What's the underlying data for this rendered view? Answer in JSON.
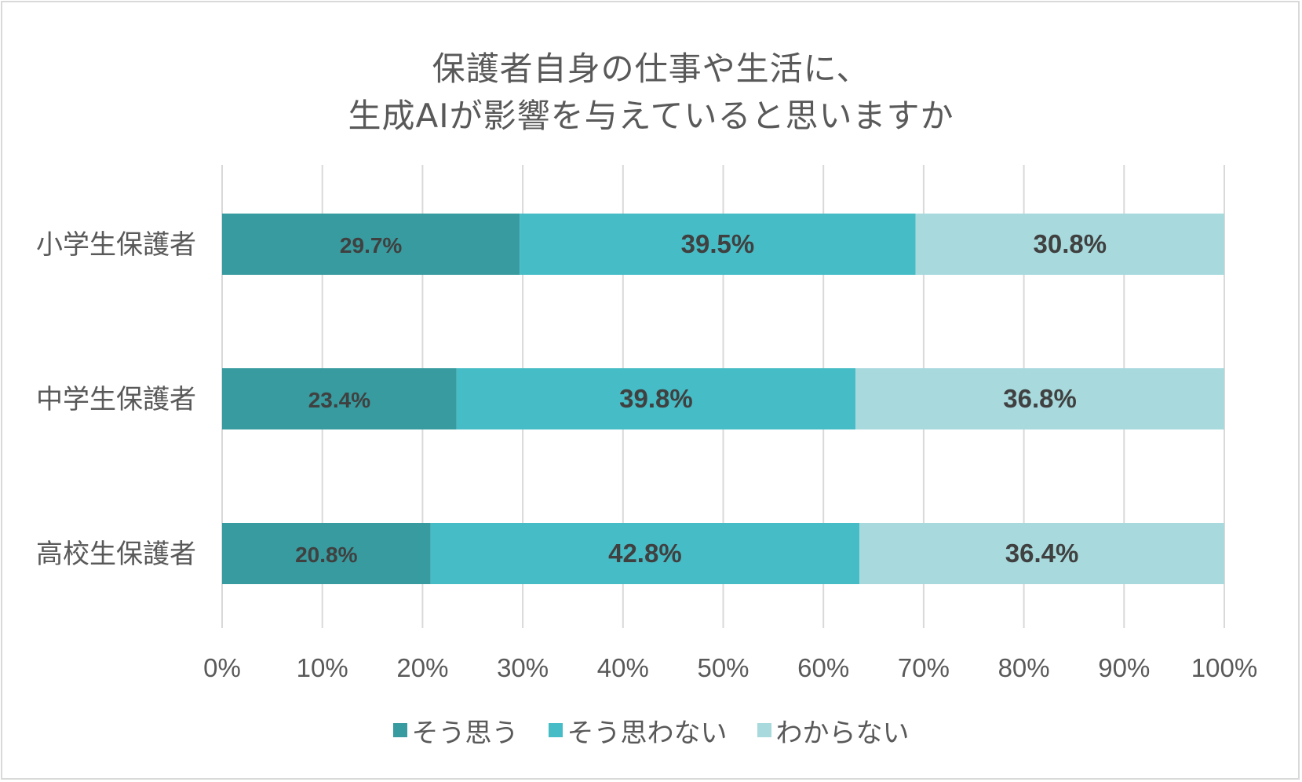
{
  "colors": {
    "series1": "#379b9f",
    "series2": "#46bcc6",
    "series3": "#a7d9dd",
    "label_text": "#404040",
    "axis_text": "#595959",
    "grid": "#d9d9d9"
  },
  "chart_data": {
    "type": "bar",
    "orientation": "horizontal",
    "stacked": "percent",
    "title_lines": [
      "保護者自身の仕事や生活に、",
      "生成AIが影響を与えていると思いますか"
    ],
    "categories": [
      "小学生保護者",
      "中学生保護者",
      "高校生保護者"
    ],
    "series": [
      {
        "name": "そう思う",
        "values": [
          29.7,
          23.4,
          20.8
        ],
        "labels": [
          "29.7%",
          "23.4%",
          "20.8%"
        ]
      },
      {
        "name": "そう思わない",
        "values": [
          39.5,
          39.8,
          42.8
        ],
        "labels": [
          "39.5%",
          "39.8%",
          "42.8%"
        ]
      },
      {
        "name": "わからない",
        "values": [
          30.8,
          36.8,
          36.4
        ],
        "labels": [
          "30.8%",
          "36.8%",
          "36.4%"
        ]
      }
    ],
    "xlim": [
      0,
      100
    ],
    "xticks": [
      "0%",
      "10%",
      "20%",
      "30%",
      "40%",
      "50%",
      "60%",
      "70%",
      "80%",
      "90%",
      "100%"
    ],
    "grid": true,
    "legend_position": "bottom"
  }
}
